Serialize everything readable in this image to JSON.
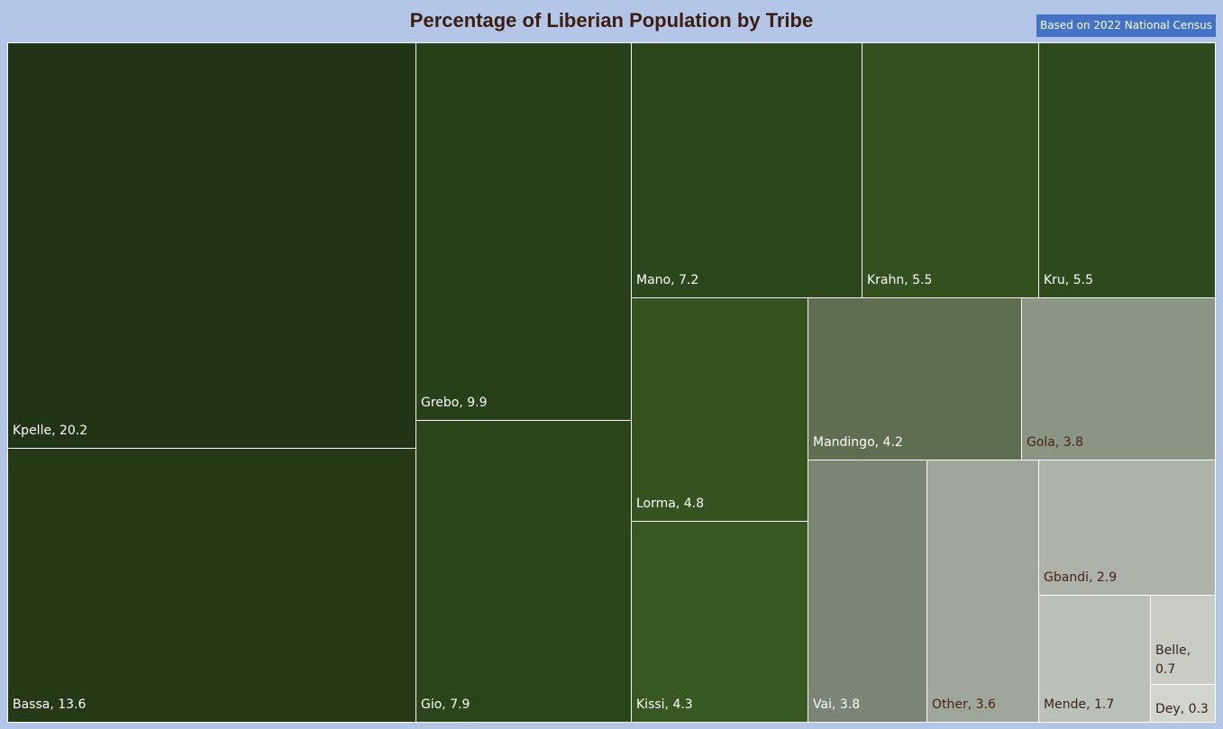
{
  "chart_data": {
    "type": "treemap",
    "title": "Percentage of Liberian Population by Tribe",
    "annotation": "Based on 2022 National Census",
    "items": [
      {
        "name": "Kpelle",
        "value": 20.2,
        "label": "Kpelle, 20.2",
        "color": "#1f3315",
        "text_color": "#ffffff"
      },
      {
        "name": "Bassa",
        "value": 13.6,
        "label": "Bassa, 13.6",
        "color": "#243a17",
        "text_color": "#ffffff"
      },
      {
        "name": "Grebo",
        "value": 9.9,
        "label": "Grebo, 9.9",
        "color": "#28401a",
        "text_color": "#ffffff"
      },
      {
        "name": "Gio",
        "value": 7.9,
        "label": "Gio, 7.9",
        "color": "#2b451b",
        "text_color": "#ffffff"
      },
      {
        "name": "Mano",
        "value": 7.2,
        "label": "Mano, 7.2",
        "color": "#2c471c",
        "text_color": "#ffffff"
      },
      {
        "name": "Krahn",
        "value": 5.5,
        "label": "Krahn, 5.5",
        "color": "#32511f",
        "text_color": "#ffffff"
      },
      {
        "name": "Kru",
        "value": 5.5,
        "label": "Kru, 5.5",
        "color": "#2e4b1d",
        "text_color": "#ffffff"
      },
      {
        "name": "Lorma",
        "value": 4.8,
        "label": "Lorma, 4.8",
        "color": "#34531f",
        "text_color": "#ffffff"
      },
      {
        "name": "Kissi",
        "value": 4.3,
        "label": "Kissi, 4.3",
        "color": "#385822",
        "text_color": "#ffffff"
      },
      {
        "name": "Mandingo",
        "value": 4.2,
        "label": "Mandingo, 4.2",
        "color": "#5d6e51",
        "text_color": "#ffffff"
      },
      {
        "name": "Gola",
        "value": 3.8,
        "label": "Gola, 3.8",
        "color": "#8a9584",
        "text_color": "#4a2212"
      },
      {
        "name": "Vai",
        "value": 3.8,
        "label": "Vai, 3.8",
        "color": "#7a8573",
        "text_color": "#ffffff"
      },
      {
        "name": "Other",
        "value": 3.6,
        "label": "Other, 3.6",
        "color": "#9ea79a",
        "text_color": "#4a2212"
      },
      {
        "name": "Gbandi",
        "value": 2.9,
        "label": "Gbandi, 2.9",
        "color": "#acb2a8",
        "text_color": "#4a2212"
      },
      {
        "name": "Mende",
        "value": 1.7,
        "label": "Mende, 1.7",
        "color": "#bbc0b8",
        "text_color": "#3a2418"
      },
      {
        "name": "Belle",
        "value": 0.7,
        "label": "Belle, 0.7",
        "color": "#c8ccc4",
        "text_color": "#3a2418"
      },
      {
        "name": "Dey",
        "value": 0.3,
        "label": "Dey, 0.3",
        "color": "#d2d5ce",
        "text_color": "#3a2418"
      }
    ]
  }
}
